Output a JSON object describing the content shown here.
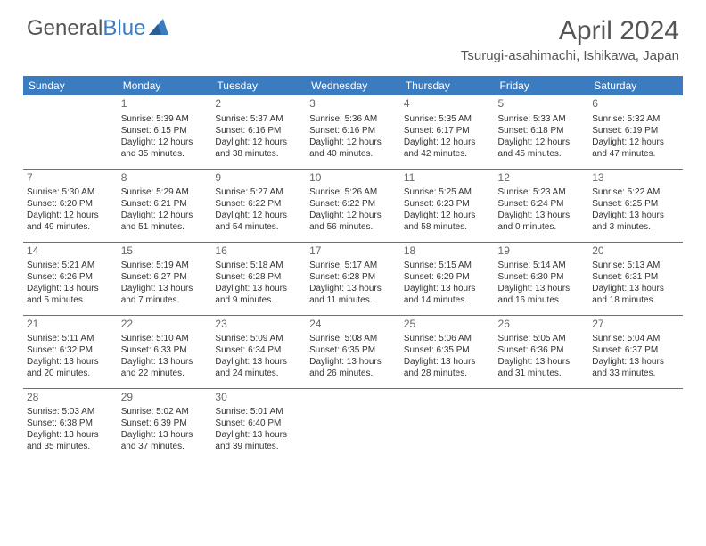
{
  "logo": {
    "text1": "General",
    "text2": "Blue"
  },
  "title": "April 2024",
  "location": "Tsurugi-asahimachi, Ishikawa, Japan",
  "colors": {
    "header_bg": "#3b7bbf",
    "header_text": "#ffffff",
    "border": "#3b7bbf",
    "text": "#333333",
    "title_color": "#555555"
  },
  "weekdays": [
    "Sunday",
    "Monday",
    "Tuesday",
    "Wednesday",
    "Thursday",
    "Friday",
    "Saturday"
  ],
  "weeks": [
    [
      null,
      {
        "n": "1",
        "sr": "Sunrise: 5:39 AM",
        "ss": "Sunset: 6:15 PM",
        "d1": "Daylight: 12 hours",
        "d2": "and 35 minutes."
      },
      {
        "n": "2",
        "sr": "Sunrise: 5:37 AM",
        "ss": "Sunset: 6:16 PM",
        "d1": "Daylight: 12 hours",
        "d2": "and 38 minutes."
      },
      {
        "n": "3",
        "sr": "Sunrise: 5:36 AM",
        "ss": "Sunset: 6:16 PM",
        "d1": "Daylight: 12 hours",
        "d2": "and 40 minutes."
      },
      {
        "n": "4",
        "sr": "Sunrise: 5:35 AM",
        "ss": "Sunset: 6:17 PM",
        "d1": "Daylight: 12 hours",
        "d2": "and 42 minutes."
      },
      {
        "n": "5",
        "sr": "Sunrise: 5:33 AM",
        "ss": "Sunset: 6:18 PM",
        "d1": "Daylight: 12 hours",
        "d2": "and 45 minutes."
      },
      {
        "n": "6",
        "sr": "Sunrise: 5:32 AM",
        "ss": "Sunset: 6:19 PM",
        "d1": "Daylight: 12 hours",
        "d2": "and 47 minutes."
      }
    ],
    [
      {
        "n": "7",
        "sr": "Sunrise: 5:30 AM",
        "ss": "Sunset: 6:20 PM",
        "d1": "Daylight: 12 hours",
        "d2": "and 49 minutes."
      },
      {
        "n": "8",
        "sr": "Sunrise: 5:29 AM",
        "ss": "Sunset: 6:21 PM",
        "d1": "Daylight: 12 hours",
        "d2": "and 51 minutes."
      },
      {
        "n": "9",
        "sr": "Sunrise: 5:27 AM",
        "ss": "Sunset: 6:22 PM",
        "d1": "Daylight: 12 hours",
        "d2": "and 54 minutes."
      },
      {
        "n": "10",
        "sr": "Sunrise: 5:26 AM",
        "ss": "Sunset: 6:22 PM",
        "d1": "Daylight: 12 hours",
        "d2": "and 56 minutes."
      },
      {
        "n": "11",
        "sr": "Sunrise: 5:25 AM",
        "ss": "Sunset: 6:23 PM",
        "d1": "Daylight: 12 hours",
        "d2": "and 58 minutes."
      },
      {
        "n": "12",
        "sr": "Sunrise: 5:23 AM",
        "ss": "Sunset: 6:24 PM",
        "d1": "Daylight: 13 hours",
        "d2": "and 0 minutes."
      },
      {
        "n": "13",
        "sr": "Sunrise: 5:22 AM",
        "ss": "Sunset: 6:25 PM",
        "d1": "Daylight: 13 hours",
        "d2": "and 3 minutes."
      }
    ],
    [
      {
        "n": "14",
        "sr": "Sunrise: 5:21 AM",
        "ss": "Sunset: 6:26 PM",
        "d1": "Daylight: 13 hours",
        "d2": "and 5 minutes."
      },
      {
        "n": "15",
        "sr": "Sunrise: 5:19 AM",
        "ss": "Sunset: 6:27 PM",
        "d1": "Daylight: 13 hours",
        "d2": "and 7 minutes."
      },
      {
        "n": "16",
        "sr": "Sunrise: 5:18 AM",
        "ss": "Sunset: 6:28 PM",
        "d1": "Daylight: 13 hours",
        "d2": "and 9 minutes."
      },
      {
        "n": "17",
        "sr": "Sunrise: 5:17 AM",
        "ss": "Sunset: 6:28 PM",
        "d1": "Daylight: 13 hours",
        "d2": "and 11 minutes."
      },
      {
        "n": "18",
        "sr": "Sunrise: 5:15 AM",
        "ss": "Sunset: 6:29 PM",
        "d1": "Daylight: 13 hours",
        "d2": "and 14 minutes."
      },
      {
        "n": "19",
        "sr": "Sunrise: 5:14 AM",
        "ss": "Sunset: 6:30 PM",
        "d1": "Daylight: 13 hours",
        "d2": "and 16 minutes."
      },
      {
        "n": "20",
        "sr": "Sunrise: 5:13 AM",
        "ss": "Sunset: 6:31 PM",
        "d1": "Daylight: 13 hours",
        "d2": "and 18 minutes."
      }
    ],
    [
      {
        "n": "21",
        "sr": "Sunrise: 5:11 AM",
        "ss": "Sunset: 6:32 PM",
        "d1": "Daylight: 13 hours",
        "d2": "and 20 minutes."
      },
      {
        "n": "22",
        "sr": "Sunrise: 5:10 AM",
        "ss": "Sunset: 6:33 PM",
        "d1": "Daylight: 13 hours",
        "d2": "and 22 minutes."
      },
      {
        "n": "23",
        "sr": "Sunrise: 5:09 AM",
        "ss": "Sunset: 6:34 PM",
        "d1": "Daylight: 13 hours",
        "d2": "and 24 minutes."
      },
      {
        "n": "24",
        "sr": "Sunrise: 5:08 AM",
        "ss": "Sunset: 6:35 PM",
        "d1": "Daylight: 13 hours",
        "d2": "and 26 minutes."
      },
      {
        "n": "25",
        "sr": "Sunrise: 5:06 AM",
        "ss": "Sunset: 6:35 PM",
        "d1": "Daylight: 13 hours",
        "d2": "and 28 minutes."
      },
      {
        "n": "26",
        "sr": "Sunrise: 5:05 AM",
        "ss": "Sunset: 6:36 PM",
        "d1": "Daylight: 13 hours",
        "d2": "and 31 minutes."
      },
      {
        "n": "27",
        "sr": "Sunrise: 5:04 AM",
        "ss": "Sunset: 6:37 PM",
        "d1": "Daylight: 13 hours",
        "d2": "and 33 minutes."
      }
    ],
    [
      {
        "n": "28",
        "sr": "Sunrise: 5:03 AM",
        "ss": "Sunset: 6:38 PM",
        "d1": "Daylight: 13 hours",
        "d2": "and 35 minutes."
      },
      {
        "n": "29",
        "sr": "Sunrise: 5:02 AM",
        "ss": "Sunset: 6:39 PM",
        "d1": "Daylight: 13 hours",
        "d2": "and 37 minutes."
      },
      {
        "n": "30",
        "sr": "Sunrise: 5:01 AM",
        "ss": "Sunset: 6:40 PM",
        "d1": "Daylight: 13 hours",
        "d2": "and 39 minutes."
      },
      null,
      null,
      null,
      null
    ]
  ]
}
